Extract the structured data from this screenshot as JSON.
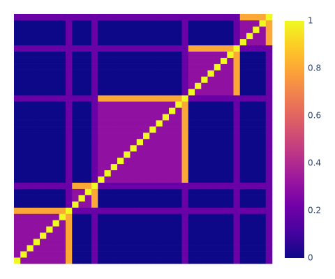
{
  "chart_data": {
    "type": "heatmap",
    "colorscale": [
      "#0d0887",
      "#46039f",
      "#7201a8",
      "#9c179e",
      "#bd3786",
      "#d8576b",
      "#ed7953",
      "#fb9f3a",
      "#fdca26",
      "#f0f921"
    ],
    "zlim": [
      0,
      1
    ],
    "zticks": [
      0,
      0.2,
      0.4,
      0.6,
      0.8,
      1
    ],
    "z": [
      [
        1,
        0.3,
        0.3,
        0.3,
        0.3,
        0.3,
        0.3,
        0.3,
        0.8,
        0,
        0,
        0,
        0.2,
        0,
        0,
        0,
        0,
        0,
        0,
        0,
        0,
        0,
        0,
        0,
        0,
        0,
        0.2,
        0,
        0,
        0,
        0,
        0,
        0,
        0,
        0.2,
        0,
        0,
        0,
        0,
        0.2
      ],
      [
        0.3,
        1,
        0.3,
        0.3,
        0.3,
        0.3,
        0.3,
        0.3,
        0.8,
        0,
        0,
        0,
        0.2,
        0,
        0,
        0,
        0,
        0,
        0,
        0,
        0,
        0,
        0,
        0,
        0,
        0,
        0.2,
        0,
        0,
        0,
        0,
        0,
        0,
        0,
        0.2,
        0,
        0,
        0,
        0,
        0.2
      ],
      [
        0.3,
        0.3,
        1,
        0.3,
        0.3,
        0.3,
        0.3,
        0.3,
        0.8,
        0,
        0,
        0,
        0.2,
        0,
        0,
        0,
        0,
        0,
        0,
        0,
        0,
        0,
        0,
        0,
        0,
        0,
        0.2,
        0,
        0,
        0,
        0,
        0,
        0,
        0,
        0.2,
        0,
        0,
        0,
        0,
        0.2
      ],
      [
        0.3,
        0.3,
        0.3,
        1,
        0.3,
        0.3,
        0.3,
        0.3,
        0.8,
        0,
        0,
        0,
        0.2,
        0,
        0,
        0,
        0,
        0,
        0,
        0,
        0,
        0,
        0,
        0,
        0,
        0,
        0.2,
        0,
        0,
        0,
        0,
        0,
        0,
        0,
        0.2,
        0,
        0,
        0,
        0,
        0.2
      ],
      [
        0.3,
        0.3,
        0.3,
        0.3,
        1,
        0.3,
        0.3,
        0.3,
        0.8,
        0,
        0,
        0,
        0.2,
        0,
        0,
        0,
        0,
        0,
        0,
        0,
        0,
        0,
        0,
        0,
        0,
        0,
        0.2,
        0,
        0,
        0,
        0,
        0,
        0,
        0,
        0.2,
        0,
        0,
        0,
        0,
        0.2
      ],
      [
        0.3,
        0.3,
        0.3,
        0.3,
        0.3,
        1,
        0.3,
        0.3,
        0.8,
        0,
        0,
        0,
        0.2,
        0,
        0,
        0,
        0,
        0,
        0,
        0,
        0,
        0,
        0,
        0,
        0,
        0,
        0.2,
        0,
        0,
        0,
        0,
        0,
        0,
        0,
        0.2,
        0,
        0,
        0,
        0,
        0.2
      ],
      [
        0.3,
        0.3,
        0.3,
        0.3,
        0.3,
        0.3,
        1,
        0.3,
        0.8,
        0,
        0,
        0,
        0.2,
        0,
        0,
        0,
        0,
        0,
        0,
        0,
        0,
        0,
        0,
        0,
        0,
        0,
        0.2,
        0,
        0,
        0,
        0,
        0,
        0,
        0,
        0.2,
        0,
        0,
        0,
        0,
        0.2
      ],
      [
        0.3,
        0.3,
        0.3,
        0.3,
        0.3,
        0.3,
        0.3,
        1,
        0.8,
        0,
        0,
        0,
        0.2,
        0,
        0,
        0,
        0,
        0,
        0,
        0,
        0,
        0,
        0,
        0,
        0,
        0,
        0.2,
        0,
        0,
        0,
        0,
        0,
        0,
        0,
        0.2,
        0,
        0,
        0,
        0,
        0.2
      ],
      [
        0.8,
        0.8,
        0.8,
        0.8,
        0.8,
        0.8,
        0.8,
        0.8,
        1,
        0.2,
        0.2,
        0.2,
        0.2,
        0.2,
        0.2,
        0.2,
        0.2,
        0.2,
        0.2,
        0.2,
        0.2,
        0.2,
        0.2,
        0.2,
        0.2,
        0.2,
        0.2,
        0.2,
        0.2,
        0.2,
        0.2,
        0.2,
        0.2,
        0.2,
        0.2,
        0.2,
        0.2,
        0.2,
        0.2,
        0.2
      ],
      [
        0,
        0,
        0,
        0,
        0,
        0,
        0,
        0,
        0.2,
        1,
        0.3,
        0.3,
        0.8,
        0,
        0,
        0,
        0,
        0,
        0,
        0,
        0,
        0,
        0,
        0,
        0,
        0,
        0.2,
        0,
        0,
        0,
        0,
        0,
        0,
        0,
        0.2,
        0,
        0,
        0,
        0,
        0.2
      ],
      [
        0,
        0,
        0,
        0,
        0,
        0,
        0,
        0,
        0.2,
        0.3,
        1,
        0.3,
        0.8,
        0,
        0,
        0,
        0,
        0,
        0,
        0,
        0,
        0,
        0,
        0,
        0,
        0,
        0.2,
        0,
        0,
        0,
        0,
        0,
        0,
        0,
        0.2,
        0,
        0,
        0,
        0,
        0.2
      ],
      [
        0,
        0,
        0,
        0,
        0,
        0,
        0,
        0,
        0.2,
        0.3,
        0.3,
        1,
        0.8,
        0,
        0,
        0,
        0,
        0,
        0,
        0,
        0,
        0,
        0,
        0,
        0,
        0,
        0.2,
        0,
        0,
        0,
        0,
        0,
        0,
        0,
        0.2,
        0,
        0,
        0,
        0,
        0.2
      ],
      [
        0.2,
        0.2,
        0.2,
        0.2,
        0.2,
        0.2,
        0.2,
        0.2,
        0.2,
        0.8,
        0.8,
        0.8,
        1,
        0.2,
        0.2,
        0.2,
        0.2,
        0.2,
        0.2,
        0.2,
        0.2,
        0.2,
        0.2,
        0.2,
        0.2,
        0.2,
        0.2,
        0.2,
        0.2,
        0.2,
        0.2,
        0.2,
        0.2,
        0.2,
        0.2,
        0.2,
        0.2,
        0.2,
        0.2,
        0.2
      ],
      [
        0,
        0,
        0,
        0,
        0,
        0,
        0,
        0,
        0.2,
        0,
        0,
        0,
        0.2,
        1,
        0.3,
        0.3,
        0.3,
        0.3,
        0.3,
        0.3,
        0.3,
        0.3,
        0.3,
        0.3,
        0.3,
        0.3,
        0.8,
        0,
        0,
        0,
        0,
        0,
        0,
        0,
        0.2,
        0,
        0,
        0,
        0,
        0.2
      ],
      [
        0,
        0,
        0,
        0,
        0,
        0,
        0,
        0,
        0.2,
        0,
        0,
        0,
        0.2,
        0.3,
        1,
        0.3,
        0.3,
        0.3,
        0.3,
        0.3,
        0.3,
        0.3,
        0.3,
        0.3,
        0.3,
        0.3,
        0.8,
        0,
        0,
        0,
        0,
        0,
        0,
        0,
        0.2,
        0,
        0,
        0,
        0,
        0.2
      ],
      [
        0,
        0,
        0,
        0,
        0,
        0,
        0,
        0,
        0.2,
        0,
        0,
        0,
        0.2,
        0.3,
        0.3,
        1,
        0.3,
        0.3,
        0.3,
        0.3,
        0.3,
        0.3,
        0.3,
        0.3,
        0.3,
        0.3,
        0.8,
        0,
        0,
        0,
        0,
        0,
        0,
        0,
        0.2,
        0,
        0,
        0,
        0,
        0.2
      ],
      [
        0,
        0,
        0,
        0,
        0,
        0,
        0,
        0,
        0.2,
        0,
        0,
        0,
        0.2,
        0.3,
        0.3,
        0.3,
        1,
        0.3,
        0.3,
        0.3,
        0.3,
        0.3,
        0.3,
        0.3,
        0.3,
        0.3,
        0.8,
        0,
        0,
        0,
        0,
        0,
        0,
        0,
        0.2,
        0,
        0,
        0,
        0,
        0.2
      ],
      [
        0,
        0,
        0,
        0,
        0,
        0,
        0,
        0,
        0.2,
        0,
        0,
        0,
        0.2,
        0.3,
        0.3,
        0.3,
        0.3,
        1,
        0.3,
        0.3,
        0.3,
        0.3,
        0.3,
        0.3,
        0.3,
        0.3,
        0.8,
        0,
        0,
        0,
        0,
        0,
        0,
        0,
        0.2,
        0,
        0,
        0,
        0,
        0.2
      ],
      [
        0,
        0,
        0,
        0,
        0,
        0,
        0,
        0,
        0.2,
        0,
        0,
        0,
        0.2,
        0.3,
        0.3,
        0.3,
        0.3,
        0.3,
        1,
        0.3,
        0.3,
        0.3,
        0.3,
        0.3,
        0.3,
        0.3,
        0.8,
        0,
        0,
        0,
        0,
        0,
        0,
        0,
        0.2,
        0,
        0,
        0,
        0,
        0.2
      ],
      [
        0,
        0,
        0,
        0,
        0,
        0,
        0,
        0,
        0.2,
        0,
        0,
        0,
        0.2,
        0.3,
        0.3,
        0.3,
        0.3,
        0.3,
        0.3,
        1,
        0.3,
        0.3,
        0.3,
        0.3,
        0.3,
        0.3,
        0.8,
        0,
        0,
        0,
        0,
        0,
        0,
        0,
        0.2,
        0,
        0,
        0,
        0,
        0.2
      ],
      [
        0,
        0,
        0,
        0,
        0,
        0,
        0,
        0,
        0.2,
        0,
        0,
        0,
        0.2,
        0.3,
        0.3,
        0.3,
        0.3,
        0.3,
        0.3,
        0.3,
        1,
        0.3,
        0.3,
        0.3,
        0.3,
        0.3,
        0.8,
        0,
        0,
        0,
        0,
        0,
        0,
        0,
        0.2,
        0,
        0,
        0,
        0,
        0.2
      ],
      [
        0,
        0,
        0,
        0,
        0,
        0,
        0,
        0,
        0.2,
        0,
        0,
        0,
        0.2,
        0.3,
        0.3,
        0.3,
        0.3,
        0.3,
        0.3,
        0.3,
        0.3,
        1,
        0.3,
        0.3,
        0.3,
        0.3,
        0.8,
        0,
        0,
        0,
        0,
        0,
        0,
        0,
        0.2,
        0,
        0,
        0,
        0,
        0.2
      ],
      [
        0,
        0,
        0,
        0,
        0,
        0,
        0,
        0,
        0.2,
        0,
        0,
        0,
        0.2,
        0.3,
        0.3,
        0.3,
        0.3,
        0.3,
        0.3,
        0.3,
        0.3,
        0.3,
        1,
        0.3,
        0.3,
        0.3,
        0.8,
        0,
        0,
        0,
        0,
        0,
        0,
        0,
        0.2,
        0,
        0,
        0,
        0,
        0.2
      ],
      [
        0,
        0,
        0,
        0,
        0,
        0,
        0,
        0,
        0.2,
        0,
        0,
        0,
        0.2,
        0.3,
        0.3,
        0.3,
        0.3,
        0.3,
        0.3,
        0.3,
        0.3,
        0.3,
        0.3,
        1,
        0.3,
        0.3,
        0.8,
        0,
        0,
        0,
        0,
        0,
        0,
        0,
        0.2,
        0,
        0,
        0,
        0,
        0.2
      ],
      [
        0,
        0,
        0,
        0,
        0,
        0,
        0,
        0,
        0.2,
        0,
        0,
        0,
        0.2,
        0.3,
        0.3,
        0.3,
        0.3,
        0.3,
        0.3,
        0.3,
        0.3,
        0.3,
        0.3,
        0.3,
        1,
        0.3,
        0.8,
        0,
        0,
        0,
        0,
        0,
        0,
        0,
        0.2,
        0,
        0,
        0,
        0,
        0.2
      ],
      [
        0,
        0,
        0,
        0,
        0,
        0,
        0,
        0,
        0.2,
        0,
        0,
        0,
        0.2,
        0.3,
        0.3,
        0.3,
        0.3,
        0.3,
        0.3,
        0.3,
        0.3,
        0.3,
        0.3,
        0.3,
        0.3,
        1,
        0.8,
        0,
        0,
        0,
        0,
        0,
        0,
        0,
        0.2,
        0,
        0,
        0,
        0,
        0.2
      ],
      [
        0.2,
        0.2,
        0.2,
        0.2,
        0.2,
        0.2,
        0.2,
        0.2,
        0.2,
        0.2,
        0.2,
        0.2,
        0.2,
        0.8,
        0.8,
        0.8,
        0.8,
        0.8,
        0.8,
        0.8,
        0.8,
        0.8,
        0.8,
        0.8,
        0.8,
        0.8,
        1,
        0.2,
        0.2,
        0.2,
        0.2,
        0.2,
        0.2,
        0.2,
        0.2,
        0.2,
        0.2,
        0.2,
        0.2,
        0.2
      ],
      [
        0,
        0,
        0,
        0,
        0,
        0,
        0,
        0,
        0.2,
        0,
        0,
        0,
        0.2,
        0,
        0,
        0,
        0,
        0,
        0,
        0,
        0,
        0,
        0,
        0,
        0,
        0,
        0.2,
        1,
        0.3,
        0.3,
        0.3,
        0.3,
        0.3,
        0.3,
        0.8,
        0,
        0,
        0,
        0,
        0.2
      ],
      [
        0,
        0,
        0,
        0,
        0,
        0,
        0,
        0,
        0.2,
        0,
        0,
        0,
        0.2,
        0,
        0,
        0,
        0,
        0,
        0,
        0,
        0,
        0,
        0,
        0,
        0,
        0,
        0.2,
        0.3,
        1,
        0.3,
        0.3,
        0.3,
        0.3,
        0.3,
        0.8,
        0,
        0,
        0,
        0,
        0.2
      ],
      [
        0,
        0,
        0,
        0,
        0,
        0,
        0,
        0,
        0.2,
        0,
        0,
        0,
        0.2,
        0,
        0,
        0,
        0,
        0,
        0,
        0,
        0,
        0,
        0,
        0,
        0,
        0,
        0.2,
        0.3,
        0.3,
        1,
        0.3,
        0.3,
        0.3,
        0.3,
        0.8,
        0,
        0,
        0,
        0,
        0.2
      ],
      [
        0,
        0,
        0,
        0,
        0,
        0,
        0,
        0,
        0.2,
        0,
        0,
        0,
        0.2,
        0,
        0,
        0,
        0,
        0,
        0,
        0,
        0,
        0,
        0,
        0,
        0,
        0,
        0.2,
        0.3,
        0.3,
        0.3,
        1,
        0.3,
        0.3,
        0.3,
        0.8,
        0,
        0,
        0,
        0,
        0.2
      ],
      [
        0,
        0,
        0,
        0,
        0,
        0,
        0,
        0,
        0.2,
        0,
        0,
        0,
        0.2,
        0,
        0,
        0,
        0,
        0,
        0,
        0,
        0,
        0,
        0,
        0,
        0,
        0,
        0.2,
        0.3,
        0.3,
        0.3,
        0.3,
        1,
        0.3,
        0.3,
        0.8,
        0,
        0,
        0,
        0,
        0.2
      ],
      [
        0,
        0,
        0,
        0,
        0,
        0,
        0,
        0,
        0.2,
        0,
        0,
        0,
        0.2,
        0,
        0,
        0,
        0,
        0,
        0,
        0,
        0,
        0,
        0,
        0,
        0,
        0,
        0.2,
        0.3,
        0.3,
        0.3,
        0.3,
        0.3,
        1,
        0.3,
        0.8,
        0,
        0,
        0,
        0,
        0.2
      ],
      [
        0,
        0,
        0,
        0,
        0,
        0,
        0,
        0,
        0.2,
        0,
        0,
        0,
        0.2,
        0,
        0,
        0,
        0,
        0,
        0,
        0,
        0,
        0,
        0,
        0,
        0,
        0,
        0.2,
        0.3,
        0.3,
        0.3,
        0.3,
        0.3,
        0.3,
        1,
        0.8,
        0,
        0,
        0,
        0,
        0.2
      ],
      [
        0.2,
        0.2,
        0.2,
        0.2,
        0.2,
        0.2,
        0.2,
        0.2,
        0.2,
        0.2,
        0.2,
        0.2,
        0.2,
        0.2,
        0.2,
        0.2,
        0.2,
        0.2,
        0.2,
        0.2,
        0.2,
        0.2,
        0.2,
        0.2,
        0.2,
        0.2,
        0.2,
        0.8,
        0.8,
        0.8,
        0.8,
        0.8,
        0.8,
        0.8,
        1,
        0.2,
        0.2,
        0.2,
        0.2,
        0.2
      ],
      [
        0,
        0,
        0,
        0,
        0,
        0,
        0,
        0,
        0.2,
        0,
        0,
        0,
        0.2,
        0,
        0,
        0,
        0,
        0,
        0,
        0,
        0,
        0,
        0,
        0,
        0,
        0,
        0.2,
        0,
        0,
        0,
        0,
        0,
        0,
        0,
        0.2,
        1,
        0.3,
        0.3,
        0.3,
        0.8
      ],
      [
        0,
        0,
        0,
        0,
        0,
        0,
        0,
        0,
        0.2,
        0,
        0,
        0,
        0.2,
        0,
        0,
        0,
        0,
        0,
        0,
        0,
        0,
        0,
        0,
        0,
        0,
        0,
        0.2,
        0,
        0,
        0,
        0,
        0,
        0,
        0,
        0.2,
        0.3,
        1,
        0.3,
        0.3,
        0.8
      ],
      [
        0,
        0,
        0,
        0,
        0,
        0,
        0,
        0,
        0.2,
        0,
        0,
        0,
        0.2,
        0,
        0,
        0,
        0,
        0,
        0,
        0,
        0,
        0,
        0,
        0,
        0,
        0,
        0.2,
        0,
        0,
        0,
        0,
        0,
        0,
        0,
        0.2,
        0.3,
        0.3,
        1,
        0.3,
        0.8
      ],
      [
        0,
        0,
        0,
        0,
        0,
        0,
        0,
        0,
        0.2,
        0,
        0,
        0,
        0.2,
        0,
        0,
        0,
        0,
        0,
        0,
        0,
        0,
        0,
        0,
        0,
        0,
        0,
        0.2,
        0,
        0,
        0,
        0,
        0,
        0,
        0,
        0.2,
        0.3,
        0.3,
        0.3,
        1,
        0.8
      ],
      [
        0.2,
        0.2,
        0.2,
        0.2,
        0.2,
        0.2,
        0.2,
        0.2,
        0.2,
        0.2,
        0.2,
        0.2,
        0.2,
        0.2,
        0.2,
        0.2,
        0.2,
        0.2,
        0.2,
        0.2,
        0.2,
        0.2,
        0.2,
        0.2,
        0.2,
        0.2,
        0.2,
        0.2,
        0.2,
        0.2,
        0.2,
        0.2,
        0.2,
        0.2,
        0.2,
        0.8,
        0.8,
        0.8,
        0.8,
        1
      ]
    ]
  }
}
